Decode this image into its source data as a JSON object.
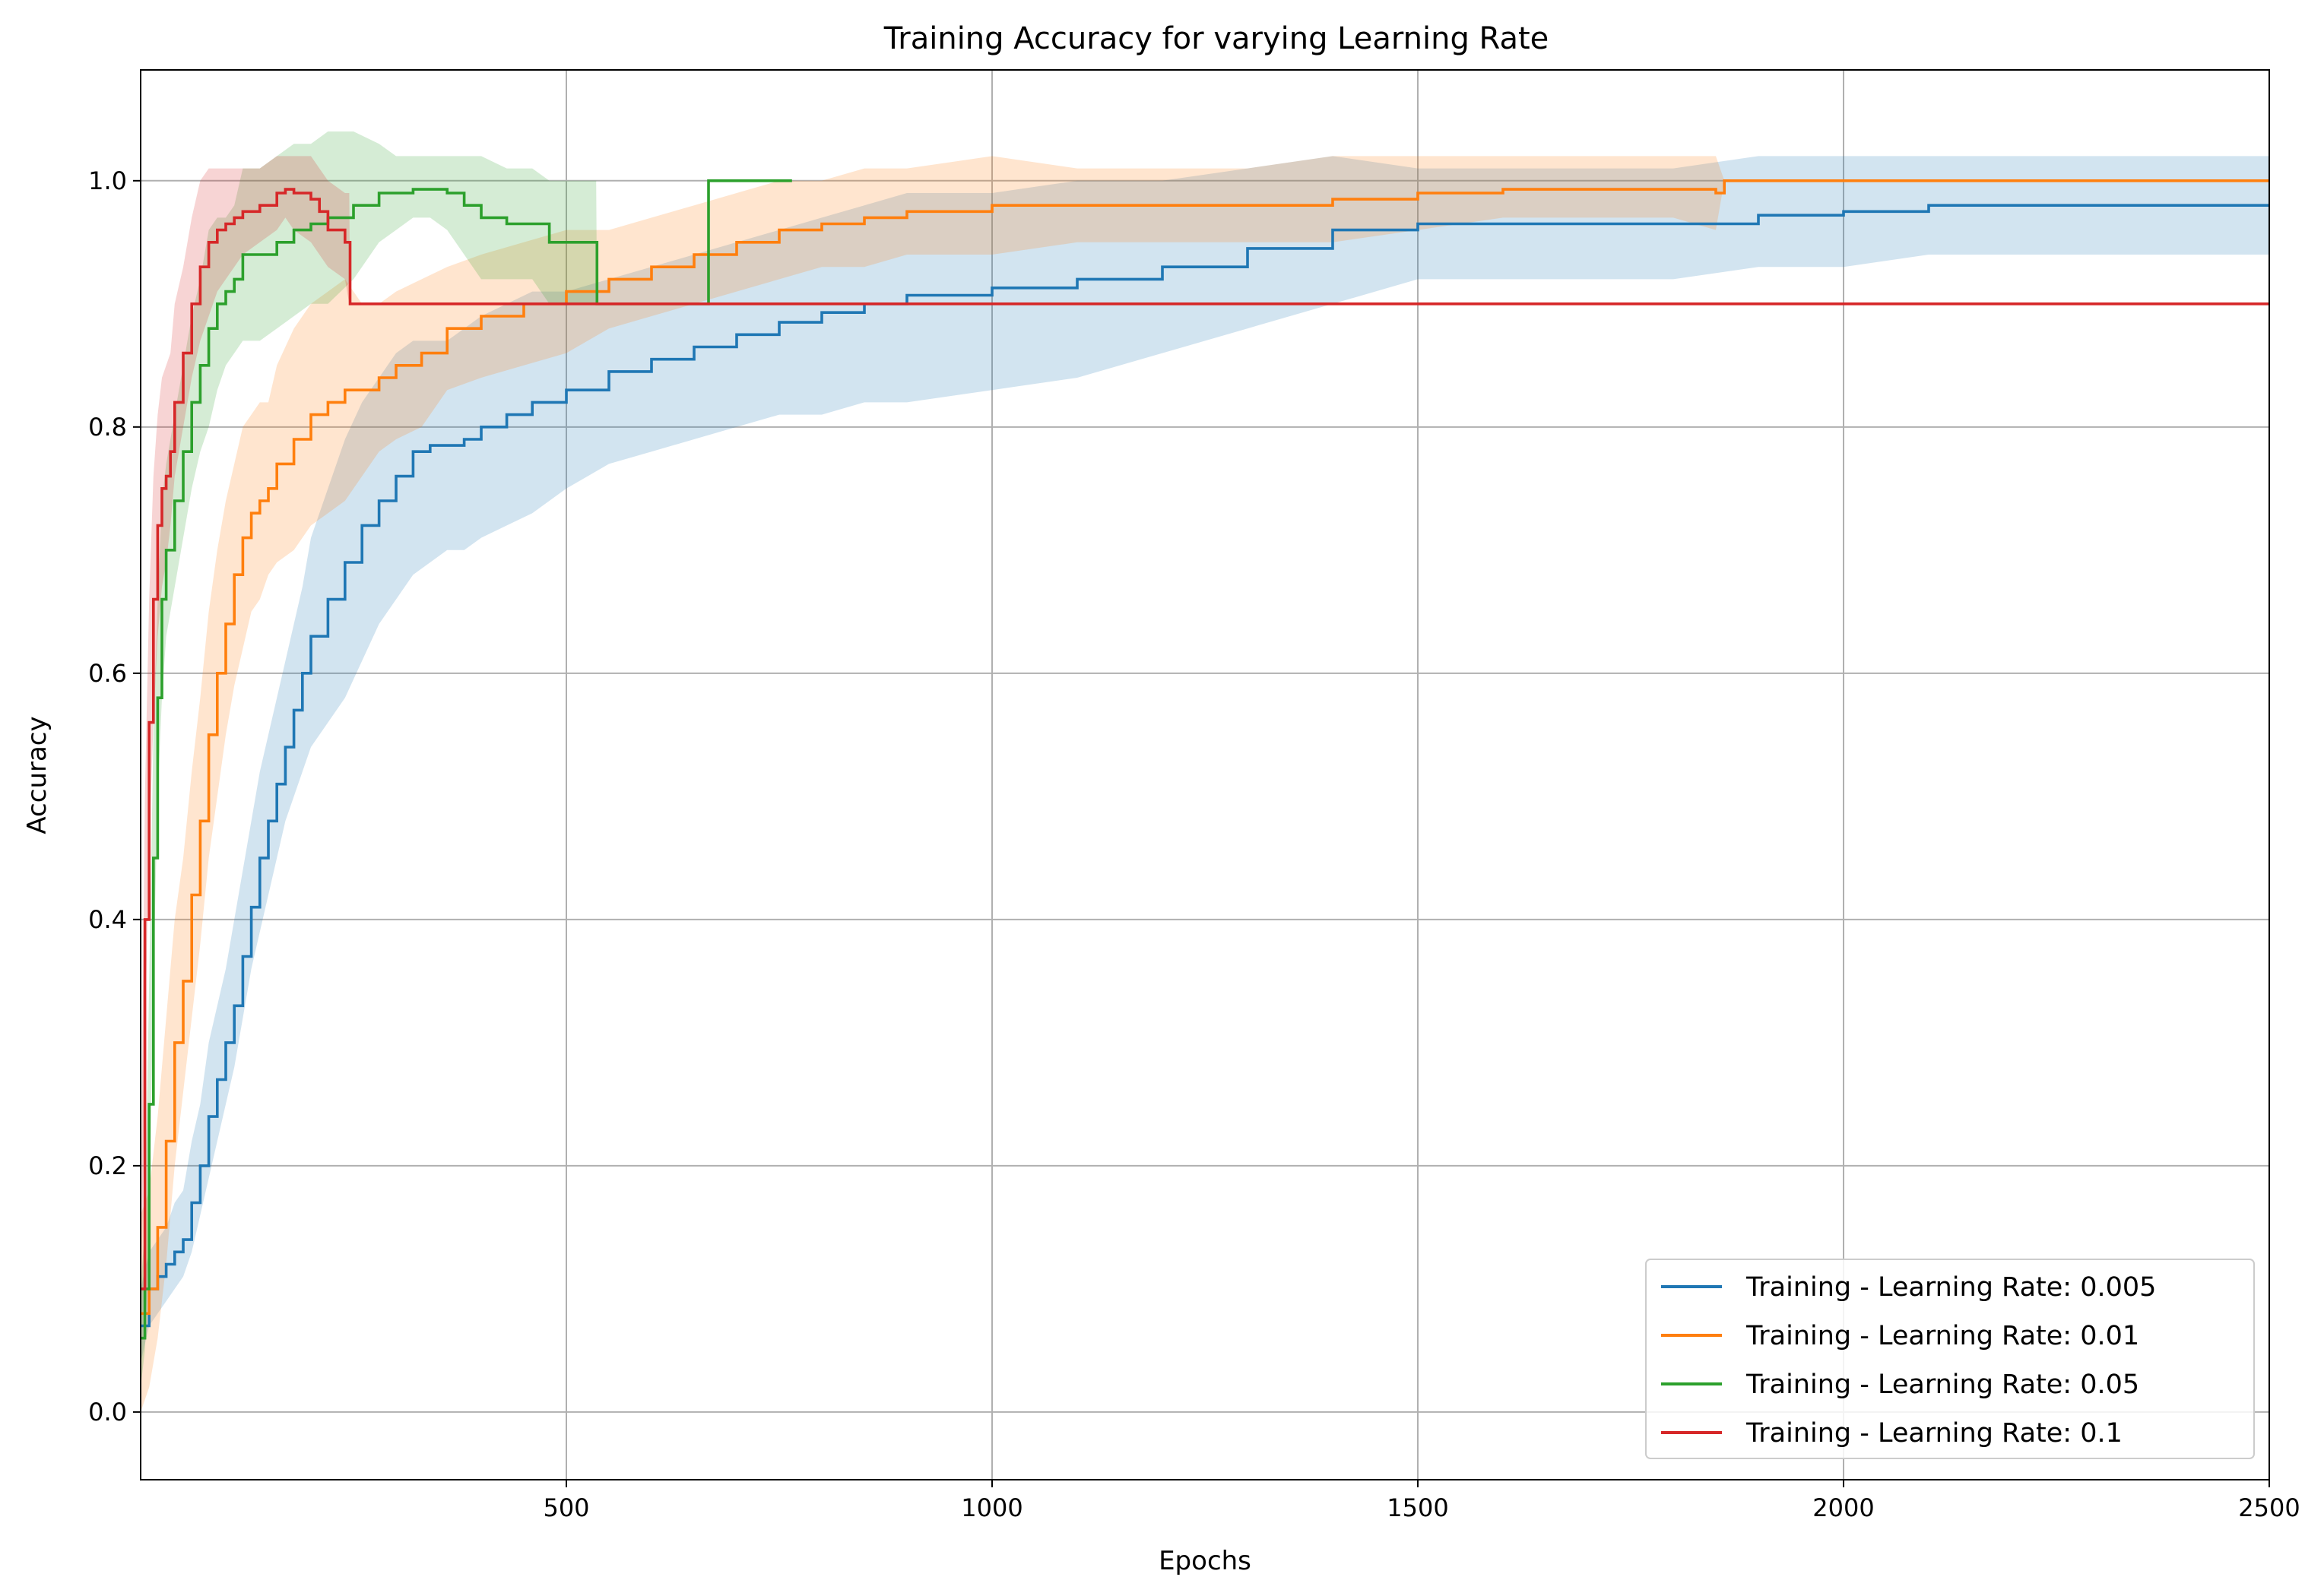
{
  "chart_data": {
    "type": "line",
    "title": "Training Accuracy for varying Learning Rate",
    "xlabel": "Epochs",
    "ylabel": "Accuracy",
    "xlim": [
      0,
      2500
    ],
    "ylim": [
      -0.055,
      1.09
    ],
    "xticks": [
      500,
      1000,
      1500,
      2000,
      2500
    ],
    "yticks": [
      0.0,
      0.2,
      0.4,
      0.6,
      0.8,
      1.0
    ],
    "xtick_labels": [
      "500",
      "1000",
      "1500",
      "2000",
      "2500"
    ],
    "ytick_labels": [
      "0.0",
      "0.2",
      "0.4",
      "0.6",
      "0.8",
      "1.0"
    ],
    "grid": true,
    "legend_position": "lower-right",
    "series": [
      {
        "name": "Training - Learning Rate: 0.005",
        "color": "#1f77b4",
        "x": [
          0,
          10,
          20,
          30,
          40,
          50,
          60,
          70,
          80,
          90,
          100,
          110,
          120,
          130,
          140,
          150,
          160,
          170,
          180,
          190,
          200,
          220,
          240,
          260,
          280,
          300,
          320,
          340,
          360,
          380,
          400,
          430,
          460,
          500,
          550,
          600,
          650,
          700,
          750,
          800,
          850,
          900,
          1000,
          1100,
          1200,
          1300,
          1400,
          1500,
          1600,
          1700,
          1800,
          1900,
          2000,
          2100,
          2300,
          2500
        ],
        "y": [
          0.07,
          0.1,
          0.11,
          0.12,
          0.13,
          0.14,
          0.17,
          0.2,
          0.24,
          0.27,
          0.3,
          0.33,
          0.37,
          0.41,
          0.45,
          0.48,
          0.51,
          0.54,
          0.57,
          0.6,
          0.63,
          0.66,
          0.69,
          0.72,
          0.74,
          0.76,
          0.78,
          0.785,
          0.785,
          0.79,
          0.8,
          0.81,
          0.82,
          0.83,
          0.845,
          0.855,
          0.865,
          0.875,
          0.885,
          0.893,
          0.9,
          0.907,
          0.913,
          0.92,
          0.93,
          0.945,
          0.96,
          0.965,
          0.965,
          0.965,
          0.965,
          0.972,
          0.975,
          0.98,
          0.98,
          0.98
        ],
        "band_lower": [
          0.04,
          0.07,
          0.08,
          0.09,
          0.1,
          0.11,
          0.13,
          0.16,
          0.19,
          0.22,
          0.25,
          0.28,
          0.32,
          0.36,
          0.39,
          0.42,
          0.45,
          0.48,
          0.5,
          0.52,
          0.54,
          0.56,
          0.58,
          0.61,
          0.64,
          0.66,
          0.68,
          0.69,
          0.7,
          0.7,
          0.71,
          0.72,
          0.73,
          0.75,
          0.77,
          0.78,
          0.79,
          0.8,
          0.81,
          0.81,
          0.82,
          0.82,
          0.83,
          0.84,
          0.86,
          0.88,
          0.9,
          0.92,
          0.92,
          0.92,
          0.92,
          0.93,
          0.93,
          0.94,
          0.94,
          0.94
        ],
        "band_upper": [
          0.1,
          0.13,
          0.14,
          0.15,
          0.17,
          0.18,
          0.22,
          0.25,
          0.3,
          0.33,
          0.36,
          0.4,
          0.44,
          0.48,
          0.52,
          0.55,
          0.58,
          0.61,
          0.64,
          0.67,
          0.71,
          0.75,
          0.79,
          0.82,
          0.84,
          0.86,
          0.87,
          0.87,
          0.87,
          0.88,
          0.89,
          0.9,
          0.91,
          0.91,
          0.92,
          0.93,
          0.94,
          0.95,
          0.96,
          0.97,
          0.98,
          0.99,
          0.99,
          1.0,
          1.0,
          1.01,
          1.02,
          1.01,
          1.01,
          1.01,
          1.01,
          1.02,
          1.02,
          1.02,
          1.02,
          1.02
        ]
      },
      {
        "name": "Training - Learning Rate: 0.01",
        "color": "#ff7f0e",
        "x": [
          0,
          10,
          20,
          30,
          40,
          50,
          60,
          70,
          80,
          90,
          100,
          110,
          120,
          130,
          140,
          150,
          160,
          180,
          200,
          220,
          240,
          260,
          280,
          300,
          330,
          360,
          400,
          450,
          500,
          550,
          600,
          650,
          700,
          750,
          800,
          850,
          900,
          1000,
          1100,
          1200,
          1300,
          1400,
          1500,
          1600,
          1700,
          1800,
          1850,
          1860,
          2000,
          2200,
          2500
        ],
        "y": [
          0.08,
          0.1,
          0.15,
          0.22,
          0.3,
          0.35,
          0.42,
          0.48,
          0.55,
          0.6,
          0.64,
          0.68,
          0.71,
          0.73,
          0.74,
          0.75,
          0.77,
          0.79,
          0.81,
          0.82,
          0.83,
          0.83,
          0.84,
          0.85,
          0.86,
          0.88,
          0.89,
          0.9,
          0.91,
          0.92,
          0.93,
          0.94,
          0.95,
          0.96,
          0.965,
          0.97,
          0.975,
          0.98,
          0.98,
          0.98,
          0.98,
          0.985,
          0.99,
          0.993,
          0.993,
          0.993,
          0.99,
          1.0,
          1.0,
          1.0,
          1.0
        ],
        "band_lower": [
          0.0,
          0.02,
          0.06,
          0.12,
          0.2,
          0.26,
          0.32,
          0.38,
          0.45,
          0.5,
          0.55,
          0.59,
          0.62,
          0.65,
          0.66,
          0.68,
          0.69,
          0.7,
          0.72,
          0.73,
          0.74,
          0.76,
          0.78,
          0.79,
          0.8,
          0.83,
          0.84,
          0.85,
          0.86,
          0.88,
          0.89,
          0.9,
          0.91,
          0.92,
          0.93,
          0.93,
          0.94,
          0.94,
          0.95,
          0.95,
          0.95,
          0.95,
          0.96,
          0.97,
          0.97,
          0.97,
          0.96,
          1.0,
          1.0,
          1.0,
          1.0
        ],
        "band_upper": [
          0.16,
          0.18,
          0.24,
          0.32,
          0.4,
          0.45,
          0.52,
          0.58,
          0.65,
          0.7,
          0.74,
          0.77,
          0.8,
          0.81,
          0.82,
          0.82,
          0.85,
          0.88,
          0.9,
          0.91,
          0.92,
          0.9,
          0.9,
          0.91,
          0.92,
          0.93,
          0.94,
          0.95,
          0.96,
          0.96,
          0.97,
          0.98,
          0.99,
          1.0,
          1.0,
          1.01,
          1.01,
          1.02,
          1.01,
          1.01,
          1.01,
          1.02,
          1.02,
          1.02,
          1.02,
          1.02,
          1.02,
          1.0,
          1.0,
          1.0,
          1.0
        ]
      },
      {
        "name": "Training - Learning Rate: 0.05",
        "color": "#2ca02c",
        "x": [
          0,
          5,
          10,
          15,
          20,
          25,
          30,
          40,
          50,
          60,
          70,
          80,
          90,
          100,
          110,
          120,
          140,
          160,
          180,
          200,
          220,
          250,
          280,
          300,
          320,
          340,
          360,
          380,
          400,
          430,
          460,
          480,
          500,
          535,
          536,
          600,
          666,
          667,
          700,
          765
        ],
        "y": [
          0.06,
          0.1,
          0.25,
          0.45,
          0.58,
          0.66,
          0.7,
          0.74,
          0.78,
          0.82,
          0.85,
          0.88,
          0.9,
          0.91,
          0.92,
          0.94,
          0.94,
          0.95,
          0.96,
          0.965,
          0.97,
          0.98,
          0.99,
          0.99,
          0.993,
          0.993,
          0.99,
          0.98,
          0.97,
          0.965,
          0.965,
          0.95,
          0.95,
          0.95,
          0.9,
          0.9,
          0.9,
          1.0,
          1.0,
          1.0
        ],
        "band_lower": [
          0.02,
          0.05,
          0.15,
          0.35,
          0.5,
          0.58,
          0.63,
          0.67,
          0.71,
          0.75,
          0.78,
          0.8,
          0.83,
          0.85,
          0.86,
          0.87,
          0.87,
          0.88,
          0.89,
          0.9,
          0.9,
          0.92,
          0.95,
          0.96,
          0.97,
          0.97,
          0.96,
          0.94,
          0.92,
          0.92,
          0.92,
          0.9,
          0.9,
          0.9,
          0.9,
          0.9,
          0.9,
          1.0,
          1.0,
          1.0
        ],
        "band_upper": [
          0.1,
          0.15,
          0.35,
          0.55,
          0.66,
          0.74,
          0.77,
          0.81,
          0.85,
          0.89,
          0.92,
          0.96,
          0.97,
          0.97,
          0.98,
          1.01,
          1.01,
          1.02,
          1.03,
          1.03,
          1.04,
          1.04,
          1.03,
          1.02,
          1.02,
          1.02,
          1.02,
          1.02,
          1.02,
          1.01,
          1.01,
          1.0,
          1.0,
          1.0,
          0.9,
          0.9,
          0.9,
          1.0,
          1.0,
          1.0
        ]
      },
      {
        "name": "Training - Learning Rate: 0.1",
        "color": "#d62728",
        "x": [
          0,
          5,
          10,
          15,
          20,
          25,
          30,
          35,
          40,
          50,
          60,
          70,
          80,
          90,
          100,
          110,
          120,
          140,
          160,
          170,
          180,
          200,
          210,
          220,
          240,
          245,
          246,
          500,
          1000,
          1500,
          2000,
          2500
        ],
        "y": [
          0.1,
          0.4,
          0.56,
          0.66,
          0.72,
          0.75,
          0.76,
          0.78,
          0.82,
          0.86,
          0.9,
          0.93,
          0.95,
          0.96,
          0.965,
          0.97,
          0.975,
          0.98,
          0.99,
          0.993,
          0.99,
          0.985,
          0.975,
          0.96,
          0.95,
          0.95,
          0.9,
          0.9,
          0.9,
          0.9,
          0.9,
          0.9
        ],
        "band_lower": [
          0.05,
          0.3,
          0.46,
          0.56,
          0.63,
          0.67,
          0.69,
          0.72,
          0.76,
          0.8,
          0.84,
          0.87,
          0.89,
          0.91,
          0.92,
          0.93,
          0.94,
          0.95,
          0.96,
          0.97,
          0.96,
          0.95,
          0.94,
          0.93,
          0.92,
          0.9,
          0.9,
          0.9,
          0.9,
          0.9,
          0.9,
          0.9
        ],
        "band_upper": [
          0.15,
          0.5,
          0.66,
          0.76,
          0.81,
          0.84,
          0.85,
          0.86,
          0.9,
          0.93,
          0.97,
          1.0,
          1.01,
          1.01,
          1.01,
          1.01,
          1.01,
          1.01,
          1.02,
          1.02,
          1.02,
          1.02,
          1.01,
          1.0,
          0.99,
          0.99,
          0.9,
          0.9,
          0.9,
          0.9,
          0.9,
          0.9
        ]
      }
    ]
  }
}
